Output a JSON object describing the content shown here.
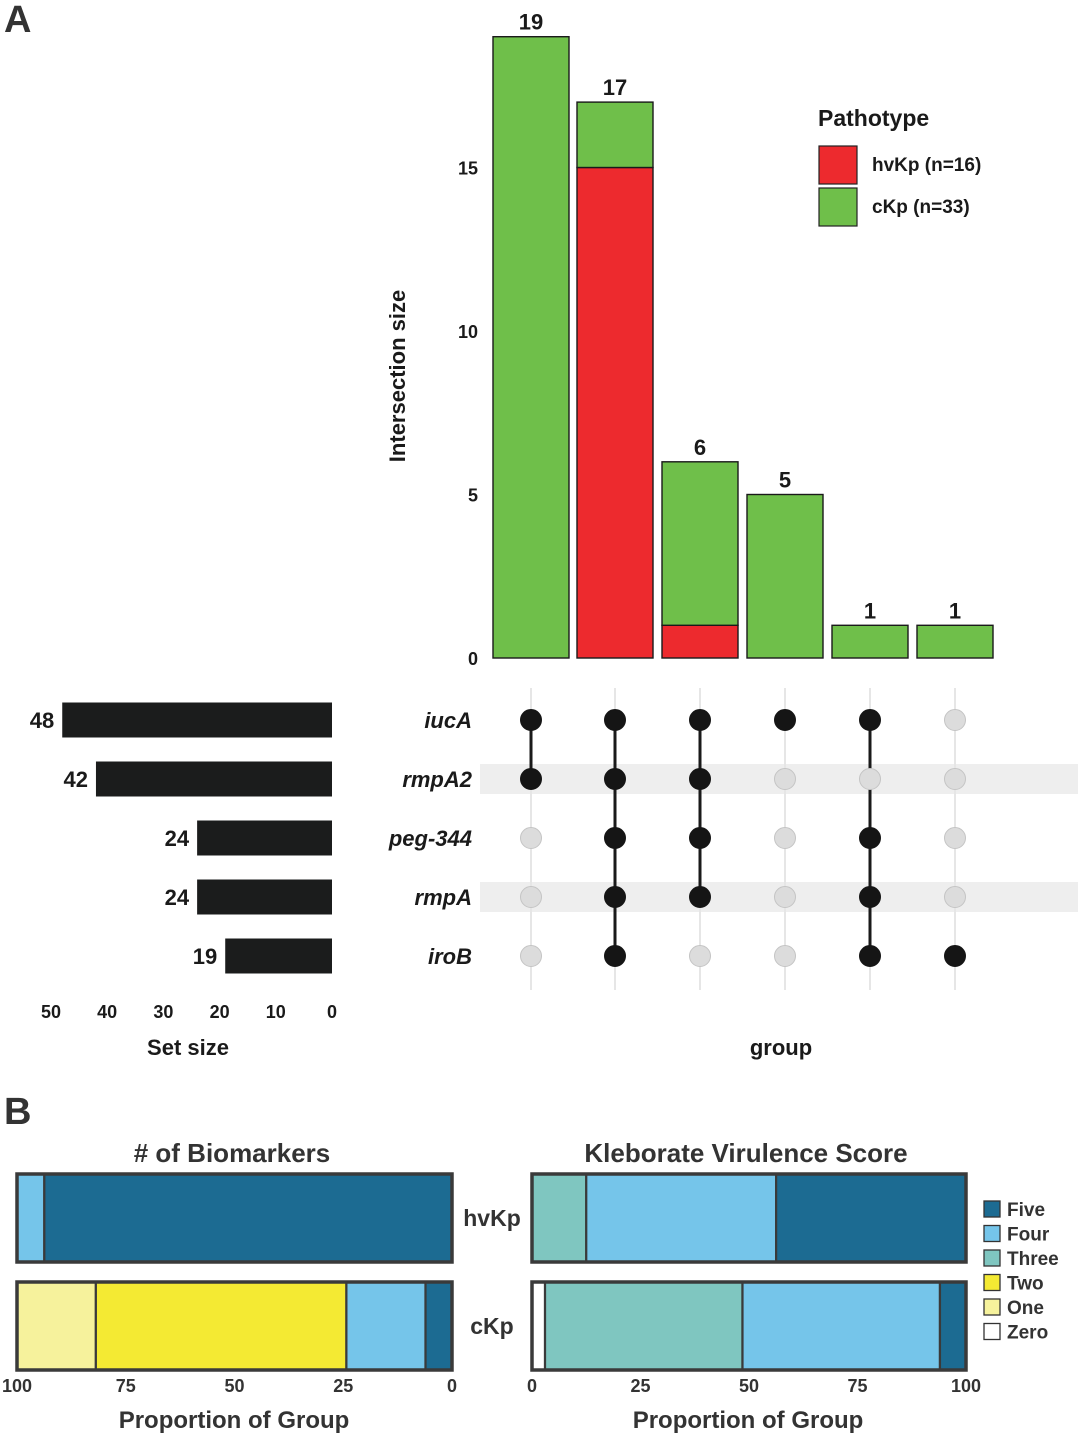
{
  "panels": {
    "a": "A",
    "b": "B"
  },
  "colors": {
    "hvkp": "#ed2a2e",
    "ckp": "#6fbf4a",
    "dark": "#1b1c1c",
    "five": "#1c6b92",
    "four": "#75c5ea",
    "three": "#7fc6c0",
    "two": "#f4ea33",
    "one": "#f6f29c",
    "zero": "#ffffff"
  },
  "chart_data": [
    {
      "type": "bar",
      "name": "intersection-size",
      "ylabel": "Intersection size",
      "xlabel": "group",
      "ylim": [
        0,
        19
      ],
      "yticks": [
        "0",
        "5",
        "10",
        "15"
      ],
      "categories": [
        "1",
        "2",
        "3",
        "4",
        "5",
        "6"
      ],
      "series": [
        {
          "name": "hvKp (n=16)",
          "values": [
            0,
            15,
            1,
            0,
            0,
            0
          ]
        },
        {
          "name": "cKp (n=33)",
          "values": [
            19,
            2,
            5,
            5,
            1,
            1
          ]
        }
      ],
      "totals": [
        "19",
        "17",
        "6",
        "5",
        "1",
        "1"
      ],
      "legend": {
        "title": "Pathotype",
        "entries": [
          "hvKp (n=16)",
          "cKp (n=33)"
        ],
        "position": "top-right"
      }
    },
    {
      "type": "bar",
      "name": "set-size",
      "orientation": "horizontal-reversed",
      "xlabel": "Set size",
      "xlim": [
        0,
        50
      ],
      "xticks": [
        "50",
        "40",
        "30",
        "20",
        "10",
        "0"
      ],
      "sets": [
        "iucA",
        "rmpA2",
        "peg-344",
        "rmpA",
        "iroB"
      ],
      "values": [
        48,
        42,
        24,
        24,
        19
      ],
      "value_labels": [
        "48",
        "42",
        "24",
        "24",
        "19"
      ]
    },
    {
      "type": "table",
      "name": "intersection-matrix",
      "rows": [
        "iucA",
        "rmpA2",
        "peg-344",
        "rmpA",
        "iroB"
      ],
      "membership": [
        [
          1,
          1,
          1,
          1,
          1,
          0
        ],
        [
          1,
          1,
          1,
          0,
          0,
          0
        ],
        [
          0,
          1,
          1,
          0,
          1,
          0
        ],
        [
          0,
          1,
          1,
          0,
          1,
          0
        ],
        [
          0,
          1,
          0,
          0,
          1,
          1
        ]
      ]
    },
    {
      "type": "bar",
      "name": "biomarkers",
      "stacked": true,
      "orientation": "horizontal-reversed",
      "title": "# of Biomarkers",
      "xlabel": "Proportion of Group",
      "xlim": [
        0,
        100
      ],
      "xticks": [
        "100",
        "75",
        "50",
        "25",
        "0"
      ],
      "groups": [
        "hvKp",
        "cKp"
      ],
      "segments": [
        [
          {
            "key": "five",
            "value": 93.75
          },
          {
            "key": "four",
            "value": 6.25
          }
        ],
        [
          {
            "key": "five",
            "value": 6.1
          },
          {
            "key": "four",
            "value": 18.2
          },
          {
            "key": "two",
            "value": 57.6
          },
          {
            "key": "one",
            "value": 18.1
          }
        ]
      ]
    },
    {
      "type": "bar",
      "name": "virulence-score",
      "stacked": true,
      "title": "Kleborate Virulence Score",
      "xlabel": "Proportion of Group",
      "xlim": [
        0,
        100
      ],
      "xticks": [
        "0",
        "25",
        "50",
        "75",
        "100"
      ],
      "groups": [
        "hvKp",
        "cKp"
      ],
      "segments": [
        [
          {
            "key": "three",
            "value": 12.5
          },
          {
            "key": "four",
            "value": 43.75
          },
          {
            "key": "five",
            "value": 43.75
          }
        ],
        [
          {
            "key": "zero",
            "value": 3.0
          },
          {
            "key": "three",
            "value": 45.5
          },
          {
            "key": "four",
            "value": 45.5
          },
          {
            "key": "five",
            "value": 6.0
          }
        ]
      ],
      "legend": {
        "entries": [
          {
            "key": "five",
            "label": "Five"
          },
          {
            "key": "four",
            "label": "Four"
          },
          {
            "key": "three",
            "label": "Three"
          },
          {
            "key": "two",
            "label": "Two"
          },
          {
            "key": "one",
            "label": "One"
          },
          {
            "key": "zero",
            "label": "Zero"
          }
        ],
        "position": "right"
      }
    }
  ]
}
